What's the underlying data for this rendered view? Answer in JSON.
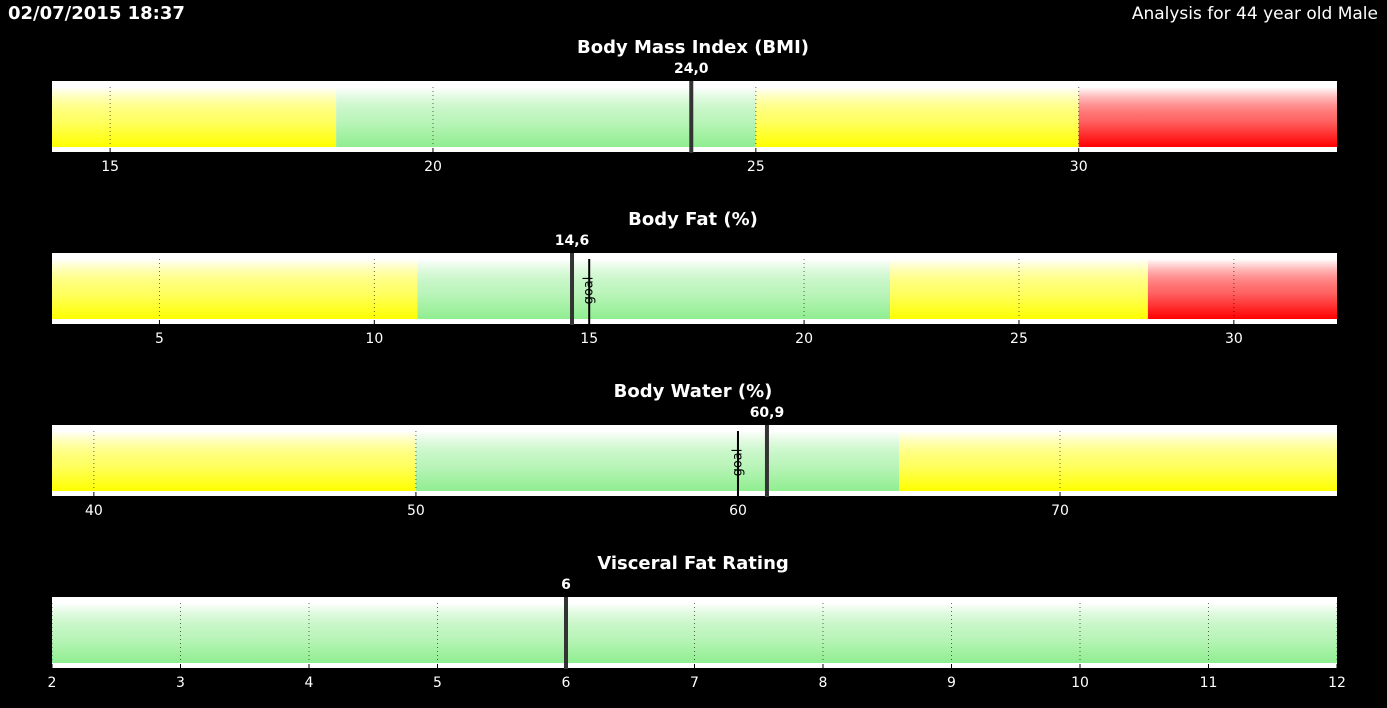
{
  "header": {
    "timestamp": "02/07/2015 18:37",
    "subject": "Analysis for 44 year old Male"
  },
  "chart_data": [
    {
      "type": "gauge",
      "title": "Body Mass Index (BMI)",
      "value": 24.0,
      "value_label": "24,0",
      "xlim": [
        14.1,
        34
      ],
      "xticks": [
        15,
        20,
        25,
        30
      ],
      "bands": [
        {
          "from": 14.1,
          "to": 18.5,
          "color": "#ffff00"
        },
        {
          "from": 18.5,
          "to": 25,
          "color": "#90ee90"
        },
        {
          "from": 25,
          "to": 30,
          "color": "#ffff00"
        },
        {
          "from": 30,
          "to": 34,
          "color": "#ff0000"
        }
      ]
    },
    {
      "type": "gauge",
      "title": "Body Fat (%)",
      "value": 14.6,
      "value_label": "14,6",
      "goal": 15,
      "goal_label": "goal",
      "xlim": [
        2.5,
        32.4
      ],
      "xticks": [
        5,
        10,
        15,
        20,
        25,
        30
      ],
      "bands": [
        {
          "from": 2.5,
          "to": 11,
          "color": "#ffff00"
        },
        {
          "from": 11,
          "to": 22,
          "color": "#90ee90"
        },
        {
          "from": 22,
          "to": 28,
          "color": "#ffff00"
        },
        {
          "from": 28,
          "to": 32.4,
          "color": "#ff0000"
        }
      ]
    },
    {
      "type": "gauge",
      "title": "Body Water (%)",
      "value": 60.9,
      "value_label": "60,9",
      "goal": 60,
      "goal_label": "goal",
      "xlim": [
        38.7,
        78.6
      ],
      "xticks": [
        40,
        50,
        60,
        70
      ],
      "bands": [
        {
          "from": 38.7,
          "to": 50,
          "color": "#ffff00"
        },
        {
          "from": 50,
          "to": 65,
          "color": "#90ee90"
        },
        {
          "from": 65,
          "to": 78.6,
          "color": "#ffff00"
        }
      ]
    },
    {
      "type": "gauge",
      "title": "Visceral Fat Rating",
      "value": 6,
      "xlim": [
        2,
        12
      ],
      "xticks": [
        2,
        3,
        4,
        5,
        6,
        7,
        8,
        9,
        10,
        11,
        12
      ],
      "bands": [
        {
          "from": 2,
          "to": 12,
          "color": "#90ee90"
        }
      ]
    }
  ]
}
